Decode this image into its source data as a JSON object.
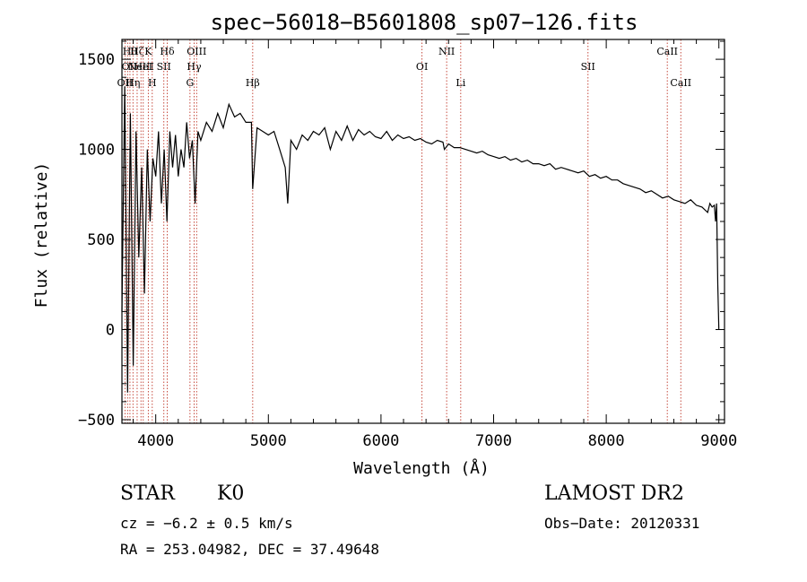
{
  "chart_data": {
    "type": "line",
    "title": "spec−56018−B5601808_sp07−126.fits",
    "xlabel": "Wavelength (Å)",
    "ylabel": "Flux (relative)",
    "xlim": [
      3700,
      9050
    ],
    "ylim": [
      -520,
      1610
    ],
    "xticks": [
      4000,
      5000,
      6000,
      7000,
      8000,
      9000
    ],
    "xtick_labels": [
      "4000",
      "5000",
      "6000",
      "7000",
      "8000",
      "9000"
    ],
    "yticks": [
      -500,
      0,
      500,
      1000,
      1500
    ],
    "ytick_labels": [
      "−500",
      "0",
      "500",
      "1000",
      "1500"
    ],
    "grid": false,
    "series": [
      {
        "color": "#000000",
        "x": [
          3700,
          3725,
          3750,
          3775,
          3800,
          3825,
          3850,
          3875,
          3900,
          3925,
          3950,
          3975,
          4000,
          4025,
          4050,
          4075,
          4100,
          4125,
          4150,
          4175,
          4200,
          4225,
          4250,
          4275,
          4300,
          4325,
          4350,
          4375,
          4400,
          4450,
          4500,
          4550,
          4600,
          4650,
          4700,
          4750,
          4800,
          4850,
          4861,
          4900,
          4950,
          5000,
          5050,
          5100,
          5150,
          5172,
          5200,
          5250,
          5300,
          5350,
          5400,
          5450,
          5500,
          5550,
          5600,
          5650,
          5700,
          5750,
          5800,
          5850,
          5900,
          5950,
          6000,
          6050,
          6100,
          6150,
          6200,
          6250,
          6300,
          6350,
          6400,
          6450,
          6500,
          6550,
          6563,
          6600,
          6650,
          6700,
          6750,
          6800,
          6850,
          6900,
          6950,
          7000,
          7050,
          7100,
          7150,
          7200,
          7250,
          7300,
          7350,
          7400,
          7450,
          7500,
          7550,
          7600,
          7650,
          7700,
          7750,
          7800,
          7850,
          7900,
          7950,
          8000,
          8050,
          8100,
          8150,
          8200,
          8250,
          8300,
          8350,
          8400,
          8450,
          8500,
          8550,
          8600,
          8650,
          8700,
          8750,
          8800,
          8850,
          8900,
          8920,
          8940,
          8960,
          8970,
          8980,
          8990,
          9000
        ],
        "y": [
          100,
          1350,
          -350,
          1200,
          -200,
          1100,
          400,
          900,
          200,
          1000,
          600,
          950,
          850,
          1100,
          700,
          1000,
          600,
          1100,
          900,
          1080,
          850,
          1000,
          900,
          1150,
          950,
          1050,
          700,
          1100,
          1050,
          1150,
          1100,
          1200,
          1120,
          1250,
          1180,
          1200,
          1150,
          1150,
          780,
          1120,
          1100,
          1080,
          1100,
          1000,
          900,
          700,
          1050,
          1000,
          1080,
          1050,
          1100,
          1080,
          1120,
          1000,
          1100,
          1050,
          1130,
          1050,
          1110,
          1080,
          1100,
          1070,
          1060,
          1100,
          1050,
          1080,
          1060,
          1070,
          1050,
          1060,
          1040,
          1030,
          1050,
          1040,
          1000,
          1030,
          1010,
          1010,
          1000,
          990,
          980,
          990,
          970,
          960,
          950,
          960,
          940,
          950,
          930,
          940,
          920,
          920,
          910,
          920,
          890,
          900,
          890,
          880,
          870,
          880,
          850,
          860,
          840,
          850,
          830,
          830,
          810,
          800,
          790,
          780,
          760,
          770,
          750,
          730,
          740,
          720,
          710,
          700,
          720,
          690,
          680,
          650,
          700,
          680,
          690,
          600,
          700,
          250,
          0
        ]
      }
    ],
    "line_markers": [
      {
        "x": 3727,
        "labels": [
          "OII"
        ],
        "row": 3
      },
      {
        "x": 3750,
        "labels": [
          "OI"
        ],
        "row": 2
      },
      {
        "x": 3771,
        "labels": [
          "Hθ"
        ],
        "row": 1
      },
      {
        "x": 3798,
        "labels": [
          "Hη"
        ],
        "row": 3
      },
      {
        "x": 3835,
        "labels": [
          "Hζ"
        ],
        "row": 1
      },
      {
        "x": 3869,
        "labels": [
          "NeIII"
        ],
        "row": 2
      },
      {
        "x": 3889,
        "labels": [
          "HeI"
        ],
        "row": 2
      },
      {
        "x": 3934,
        "labels": [
          "K"
        ],
        "row": 1
      },
      {
        "x": 3969,
        "labels": [
          "H"
        ],
        "row": 3
      },
      {
        "x": 4072,
        "labels": [
          "SII"
        ],
        "row": 2
      },
      {
        "x": 4102,
        "labels": [
          "Hδ"
        ],
        "row": 1
      },
      {
        "x": 4304,
        "labels": [
          "G"
        ],
        "row": 3
      },
      {
        "x": 4341,
        "labels": [
          "Hγ"
        ],
        "row": 2
      },
      {
        "x": 4363,
        "labels": [
          "OIII"
        ],
        "row": 1
      },
      {
        "x": 4861,
        "labels": [
          "Hβ"
        ],
        "row": 3
      },
      {
        "x": 6364,
        "labels": [
          "OI"
        ],
        "row": 2
      },
      {
        "x": 6583,
        "labels": [
          "NII"
        ],
        "row": 1
      },
      {
        "x": 6708,
        "labels": [
          "Li"
        ],
        "row": 3
      },
      {
        "x": 7838,
        "labels": [
          "SII"
        ],
        "row": 2
      },
      {
        "x": 8542,
        "labels": [
          "CaII"
        ],
        "row": 1
      },
      {
        "x": 8662,
        "labels": [
          "CaII"
        ],
        "row": 3
      }
    ]
  },
  "info": {
    "object_class": "STAR",
    "subclass": "K0",
    "cz": "cz = −6.2 ± 0.5 km/s",
    "radec": "RA = 253.04982, DEC =  37.49648",
    "survey": "LAMOST DR2",
    "obs_date": "Obs−Date: 20120331"
  }
}
